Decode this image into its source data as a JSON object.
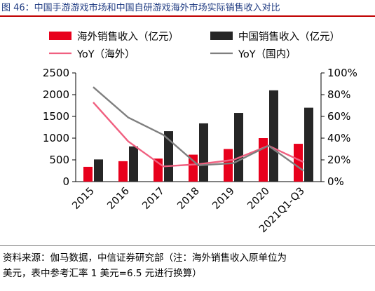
{
  "header": {
    "title": "图 46：中国手游游戏市场和中国自研游戏海外市场实际销售收入对比"
  },
  "source": {
    "line1": "资料来源：伽马数据，中信证券研究部（注：海外销售收入原单位为",
    "line2": "美元，表中参考汇率 1 美元=6.5 元进行换算）"
  },
  "colors": {
    "overseas_bar": "#e8001c",
    "domestic_bar": "#262626",
    "overseas_yoy": "#f06080",
    "domestic_yoy": "#7f7f7f",
    "axis": "#000000"
  },
  "chart_data": {
    "type": "bar",
    "categories": [
      "2015",
      "2016",
      "2017",
      "2018",
      "2019",
      "2020",
      "2021Q1-Q3"
    ],
    "series": [
      {
        "name": "海外销售收入（亿元）",
        "kind": "bar",
        "axis": "left",
        "values": [
          340,
          470,
          530,
          620,
          750,
          1000,
          870
        ]
      },
      {
        "name": "中国销售收入（亿元）",
        "kind": "bar",
        "axis": "left",
        "values": [
          510,
          810,
          1160,
          1340,
          1580,
          2100,
          1700
        ]
      },
      {
        "name": "YoY（海外）",
        "kind": "line",
        "axis": "right",
        "values": [
          73,
          37,
          14,
          16,
          20,
          33,
          18
        ]
      },
      {
        "name": "YoY（国内）",
        "kind": "line",
        "axis": "right",
        "values": [
          87,
          59,
          43,
          15,
          17,
          33,
          10
        ]
      }
    ],
    "left_axis": {
      "min": 0,
      "max": 2500,
      "ticks": [
        "0",
        "500",
        "1000",
        "1500",
        "2000",
        "2500"
      ]
    },
    "right_axis": {
      "min": 0,
      "max": 100,
      "ticks": [
        "0%",
        "20%",
        "40%",
        "60%",
        "80%",
        "100%"
      ]
    },
    "legend": {
      "placement": "top"
    },
    "grid": false
  }
}
